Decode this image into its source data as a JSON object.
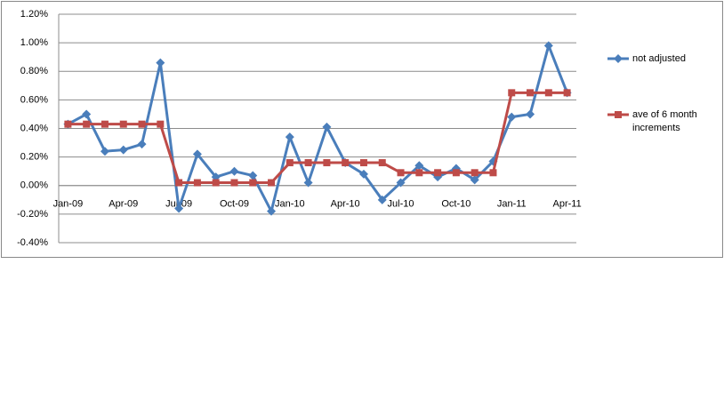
{
  "chart_data": {
    "type": "line",
    "categories": [
      "Jan-09",
      null,
      null,
      "Apr-09",
      null,
      null,
      "Jul-09",
      null,
      null,
      "Oct-09",
      null,
      null,
      "Jan-10",
      null,
      null,
      "Apr-10",
      null,
      null,
      "Jul-10",
      null,
      null,
      "Oct-10",
      null,
      null,
      "Jan-11",
      null,
      null,
      "Apr-11"
    ],
    "series": [
      {
        "name": "not adjusted",
        "color": "#4a7ebb",
        "marker": "diamond",
        "values": [
          0.43,
          0.5,
          0.24,
          0.25,
          0.29,
          0.86,
          -0.16,
          0.22,
          0.06,
          0.1,
          0.07,
          -0.18,
          0.34,
          0.02,
          0.41,
          0.16,
          0.08,
          -0.1,
          0.02,
          0.14,
          0.06,
          0.12,
          0.04,
          0.17,
          0.48,
          0.5,
          0.98,
          0.65
        ]
      },
      {
        "name": "ave of 6 month increments",
        "color": "#be4b48",
        "marker": "square",
        "values": [
          0.43,
          0.43,
          0.43,
          0.43,
          0.43,
          0.43,
          0.02,
          0.02,
          0.02,
          0.02,
          0.02,
          0.02,
          0.16,
          0.16,
          0.16,
          0.16,
          0.16,
          0.16,
          0.09,
          0.09,
          0.09,
          0.09,
          0.09,
          0.09,
          0.65,
          0.65,
          0.65,
          0.65
        ]
      }
    ],
    "ylim": [
      -0.4,
      1.2
    ],
    "yticks": [
      {
        "value": -0.4,
        "label": "-0.40%"
      },
      {
        "value": -0.2,
        "label": "-0.20%"
      },
      {
        "value": 0,
        "label": "0.00%"
      },
      {
        "value": 0.2,
        "label": "0.20%"
      },
      {
        "value": 0.4,
        "label": "0.40%"
      },
      {
        "value": 0.6,
        "label": "0.60%"
      },
      {
        "value": 0.8,
        "label": "0.80%"
      },
      {
        "value": 1.0,
        "label": "1.00%"
      },
      {
        "value": 1.2,
        "label": "1.20%"
      }
    ],
    "grid": true,
    "legend": "right"
  }
}
